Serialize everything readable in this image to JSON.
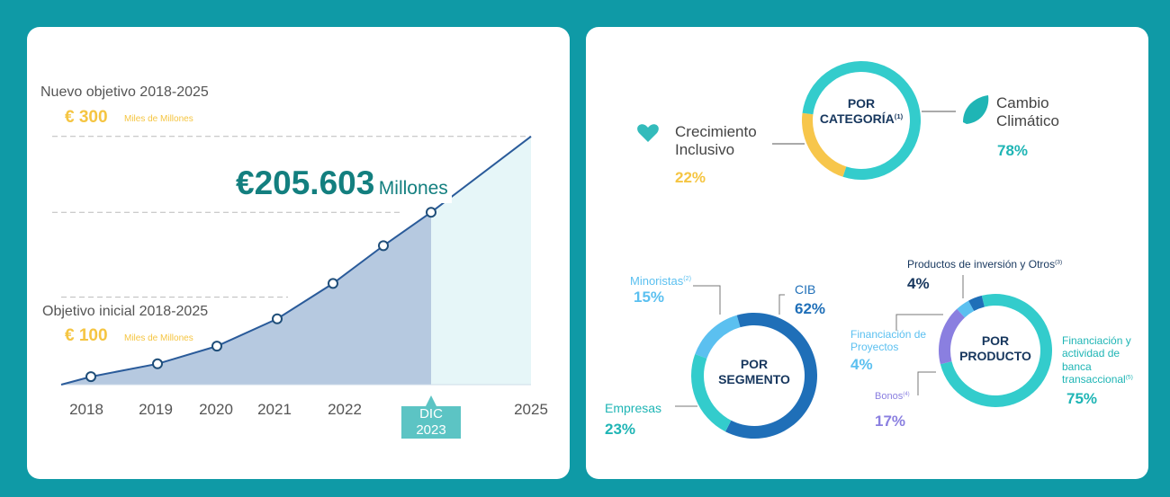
{
  "chart_data": [
    {
      "type": "line",
      "categories": [
        "2018",
        "2019",
        "2020",
        "2021",
        "2022",
        null,
        "DIC 2023",
        "2025"
      ],
      "values": [
        1,
        17,
        39,
        73,
        117,
        164,
        205.603,
        300
      ],
      "value_labels": [
        null,
        null,
        null,
        null,
        null,
        null,
        "€205.603",
        null
      ],
      "value_unit": "Millones",
      "color": "#2a5b9a",
      "targets": [
        {
          "label": "Nuevo objetivo 2018-2025",
          "value": 300,
          "value_label": "€ 300",
          "unit": "Miles de Millones"
        },
        {
          "label": "Objetivo inicial 2018-2025",
          "value": 100,
          "value_label": "€ 100",
          "unit": "Miles de Millones"
        }
      ]
    },
    {
      "type": "pie",
      "title": "POR CATEGORÍA",
      "title_note": "(1)",
      "categories": [
        "Crecimiento Inclusivo",
        "Cambio Climático"
      ],
      "values": [
        22,
        78
      ],
      "value_labels": [
        "22%",
        "78%"
      ],
      "colors": [
        "#f7c64b",
        "#33cccc"
      ]
    },
    {
      "type": "pie",
      "title": "POR SEGMENTO",
      "categories": [
        "Minoristas",
        "CIB",
        "Empresas"
      ],
      "notes": [
        "(2)",
        null,
        null
      ],
      "values": [
        15,
        62,
        23
      ],
      "value_labels": [
        "15%",
        "62%",
        "23%"
      ],
      "colors": [
        "#5bc0f0",
        "#1f6fb8",
        "#33cccc"
      ]
    },
    {
      "type": "pie",
      "title": "POR PRODUCTO",
      "categories": [
        "Financiación y actividad de banca transaccional",
        "Bonos",
        "Financiación de Proyectos",
        "Productos de inversión y Otros"
      ],
      "notes": [
        "(5)",
        "(4)",
        null,
        "(3)"
      ],
      "values": [
        75,
        17,
        4,
        4
      ],
      "value_labels": [
        "75%",
        "17%",
        "4%",
        "4%"
      ],
      "colors": [
        "#33cccc",
        "#8a7fe0",
        "#5bc0f0",
        "#1f6fb8"
      ]
    }
  ]
}
